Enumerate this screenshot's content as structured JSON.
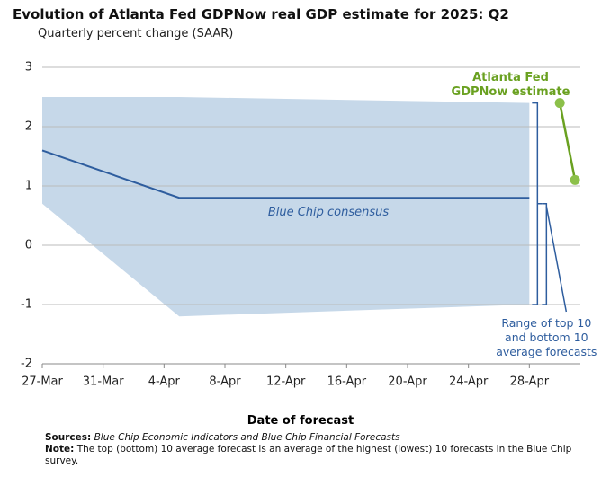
{
  "chart_data": {
    "type": "line",
    "title": "Evolution of Atlanta Fed GDPNow real GDP estimate for 2025: Q2",
    "subtitle": "Quarterly percent change (SAAR)",
    "x_label": "Date of forecast",
    "xlim": [
      "27-Mar",
      "2-May"
    ],
    "xticks": [
      "27-Mar",
      "31-Mar",
      "4-Apr",
      "8-Apr",
      "12-Apr",
      "16-Apr",
      "20-Apr",
      "24-Apr",
      "28-Apr"
    ],
    "ylim": [
      -2,
      3
    ],
    "yticks": [
      -2,
      -1,
      0,
      1,
      2,
      3
    ],
    "grid": true,
    "series": [
      {
        "name": "Range of top 10 and bottom 10 average forecasts",
        "kind": "band",
        "color": "#c6d8e9",
        "label_color": "#2e5d9e",
        "x": [
          "27-Mar",
          "5-Apr",
          "28-Apr"
        ],
        "upper": [
          2.5,
          2.5,
          2.4
        ],
        "lower": [
          0.7,
          -1.2,
          -1.0
        ]
      },
      {
        "name": "Blue Chip consensus",
        "kind": "line",
        "color": "#2e5d9e",
        "x": [
          "27-Mar",
          "5-Apr",
          "28-Apr"
        ],
        "values": [
          1.6,
          0.8,
          0.8
        ]
      },
      {
        "name": "Atlanta Fed GDPNow estimate",
        "kind": "points",
        "color": "#6aa121",
        "marker_color": "#8cc04a",
        "x": [
          "30-Apr",
          "1-May"
        ],
        "values": [
          2.4,
          1.1
        ]
      }
    ],
    "sources": {
      "label": "Sources:",
      "text": "Blue Chip Economic Indicators and Blue Chip Financial Forecasts"
    },
    "note": {
      "label": "Note:",
      "text": "The top (bottom) 10 average forecast is an average of the highest (lowest) 10 forecasts in the Blue Chip survey."
    }
  }
}
